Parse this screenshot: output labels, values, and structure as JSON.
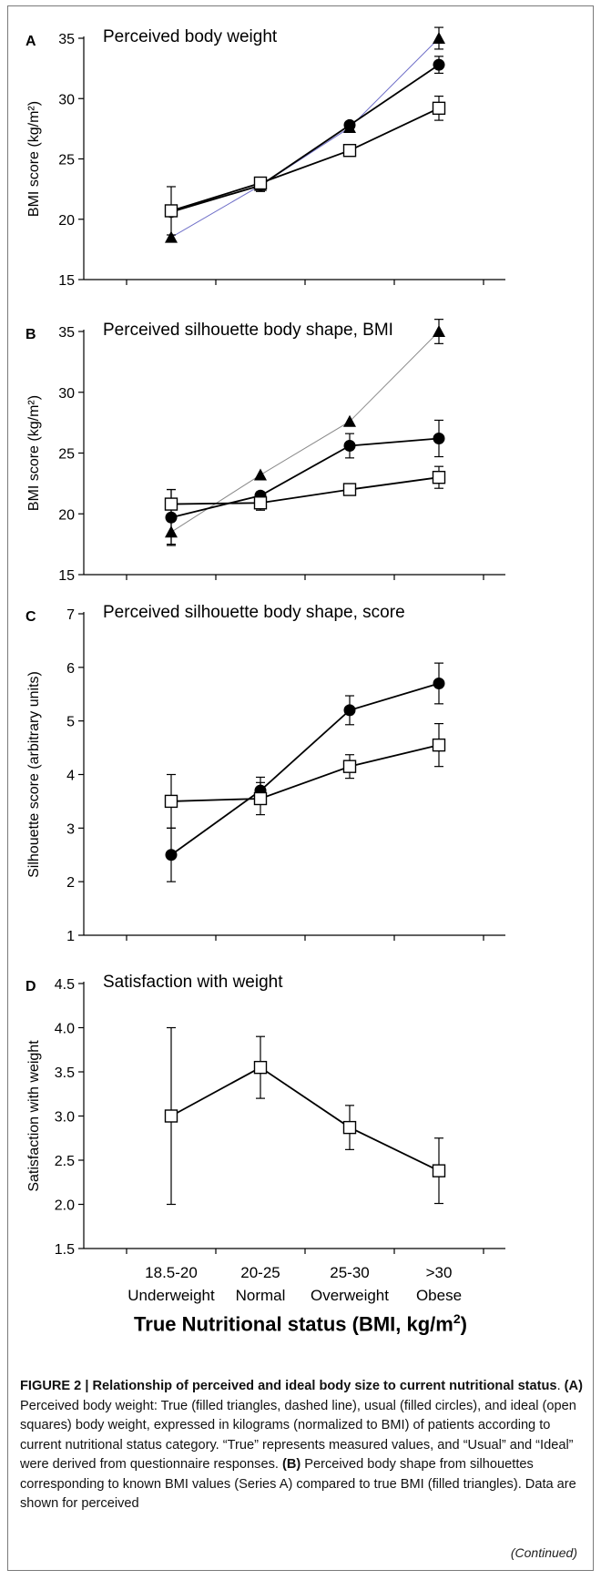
{
  "chart_data": [
    {
      "type": "line",
      "panel_letter": "A",
      "title": "Perceived body weight",
      "ylabel": "BMI score (kg/m²)",
      "ylim": [
        15,
        35
      ],
      "yticks": [
        15,
        20,
        25,
        30,
        35
      ],
      "categories": [
        "18.5-20",
        "20-25",
        "25-30",
        ">30"
      ],
      "series": [
        {
          "marker": "triangle",
          "line": "thin-blue",
          "values": [
            18.5,
            22.8,
            27.6,
            35.0
          ],
          "error": [
            0.0,
            0.0,
            0.3,
            0.9
          ]
        },
        {
          "marker": "circle",
          "line": "black",
          "values": [
            20.6,
            22.8,
            27.8,
            32.8
          ],
          "error": [
            0.0,
            0.5,
            0.0,
            0.7
          ]
        },
        {
          "marker": "square",
          "line": "black",
          "values": [
            20.7,
            23.0,
            25.7,
            29.2
          ],
          "error": [
            2.0,
            0.3,
            0.4,
            1.0
          ]
        }
      ]
    },
    {
      "type": "line",
      "panel_letter": "B",
      "title": "Perceived silhouette body shape, BMI",
      "ylabel": "BMI score (kg/m²)",
      "ylim": [
        15,
        35
      ],
      "yticks": [
        15,
        20,
        25,
        30,
        35
      ],
      "categories": [
        "18.5-20",
        "20-25",
        "25-30",
        ">30"
      ],
      "series": [
        {
          "marker": "triangle",
          "line": "thin-gray",
          "values": [
            18.5,
            23.2,
            27.6,
            35.0
          ],
          "error": [
            1.0,
            0.0,
            0.0,
            1.0
          ]
        },
        {
          "marker": "circle",
          "line": "black",
          "values": [
            19.7,
            21.5,
            25.6,
            26.2
          ],
          "error": [
            2.3,
            0.3,
            1.0,
            1.5
          ]
        },
        {
          "marker": "square",
          "line": "black",
          "values": [
            20.8,
            20.9,
            22.0,
            23.0
          ],
          "error": [
            1.2,
            0.6,
            0.3,
            0.9
          ]
        }
      ]
    },
    {
      "type": "line",
      "panel_letter": "C",
      "title": "Perceived silhouette body shape, score",
      "ylabel": "Silhouette score (arbitrary units)",
      "ylim": [
        1,
        7
      ],
      "yticks": [
        1,
        2,
        3,
        4,
        5,
        6,
        7
      ],
      "categories": [
        "18.5-20",
        "20-25",
        "25-30",
        ">30"
      ],
      "series": [
        {
          "marker": "circle",
          "line": "black",
          "values": [
            2.5,
            3.7,
            5.2,
            5.7
          ],
          "error": [
            0.5,
            0.25,
            0.27,
            0.38
          ]
        },
        {
          "marker": "square",
          "line": "black",
          "values": [
            3.5,
            3.55,
            4.15,
            4.55
          ],
          "error": [
            0.5,
            0.3,
            0.22,
            0.4
          ]
        }
      ]
    },
    {
      "type": "line",
      "panel_letter": "D",
      "title": "Satisfaction with weight",
      "ylabel": "Satisfaction with weight",
      "ylim": [
        1.5,
        4.5
      ],
      "yticks": [
        "1.5",
        "2.0",
        "2.5",
        "3.0",
        "3.5",
        "4.0",
        "4.5"
      ],
      "categories": [
        "18.5-20",
        "20-25",
        "25-30",
        ">30"
      ],
      "category_sublabels": [
        "Underweight",
        "Normal",
        "Overweight",
        "Obese"
      ],
      "series": [
        {
          "marker": "square",
          "line": "black",
          "values": [
            3.0,
            3.55,
            2.87,
            2.38
          ],
          "error": [
            1.0,
            0.35,
            0.25,
            0.37
          ]
        }
      ]
    }
  ],
  "xaxis_title": "True Nutritional status (BMI, kg/m",
  "xaxis_title_sup": "2",
  "xaxis_title_end": ")",
  "caption": {
    "title": "FIGURE 2 | Relationship of perceived and ideal body size to current nutritional status",
    "a_label": "(A)",
    "a_text": " Perceived body weight: True (filled triangles, dashed line), usual (filled circles), and ideal (open squares) body weight, expressed in kilograms (normalized to BMI) of patients according to current nutritional status category. “True” represents measured values, and “Usual” and “Ideal” were derived from questionnaire responses. ",
    "b_label": "(B)",
    "b_text": " Perceived body shape from silhouettes corresponding to known BMI values (Series A) compared to true BMI (filled triangles). Data are shown for perceived",
    "continued": "(Continued)"
  }
}
